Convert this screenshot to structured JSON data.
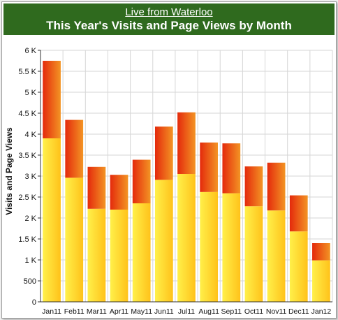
{
  "header": {
    "link_text": "Live from Waterloo",
    "title": "This Year's Visits and Page Views by Month"
  },
  "colors": {
    "header_bg": "#2f6a1e",
    "visits_top": "#fff04a",
    "visits_bottom": "#ffc21a",
    "views_top": "#e42a0c",
    "views_bottom": "#f39424",
    "grid": "#d6d6d6"
  },
  "chart_data": {
    "type": "bar",
    "stacked": true,
    "title": "This Year's Visits and Page Views by Month",
    "xlabel": "",
    "ylabel": "Visits and Page Views",
    "ylim": [
      0,
      6000
    ],
    "yticks": [
      0,
      500,
      1000,
      1500,
      2000,
      2500,
      3000,
      3500,
      4000,
      4500,
      5000,
      5500,
      6000
    ],
    "ytick_labels": [
      "0",
      "500",
      "1 K",
      "1.5 K",
      "2 K",
      "2.5 K",
      "3 K",
      "3.5 K",
      "4 K",
      "4.5 K",
      "5 K",
      "5.5 K",
      "6 K"
    ],
    "categories": [
      "Jan11",
      "Feb11",
      "Mar11",
      "Apr11",
      "May11",
      "Jun11",
      "Jul11",
      "Aug11",
      "Sep11",
      "Oct11",
      "Nov11",
      "Dec11",
      "Jan12"
    ],
    "series": [
      {
        "values": [
          3900,
          2960,
          2220,
          2200,
          2350,
          2910,
          3050,
          2620,
          2590,
          2280,
          2180,
          1680,
          990
        ]
      },
      {
        "values": [
          1850,
          1380,
          1000,
          830,
          1040,
          1270,
          1470,
          1180,
          1190,
          950,
          1140,
          860,
          410
        ]
      }
    ],
    "grid": true,
    "legend": "none"
  }
}
